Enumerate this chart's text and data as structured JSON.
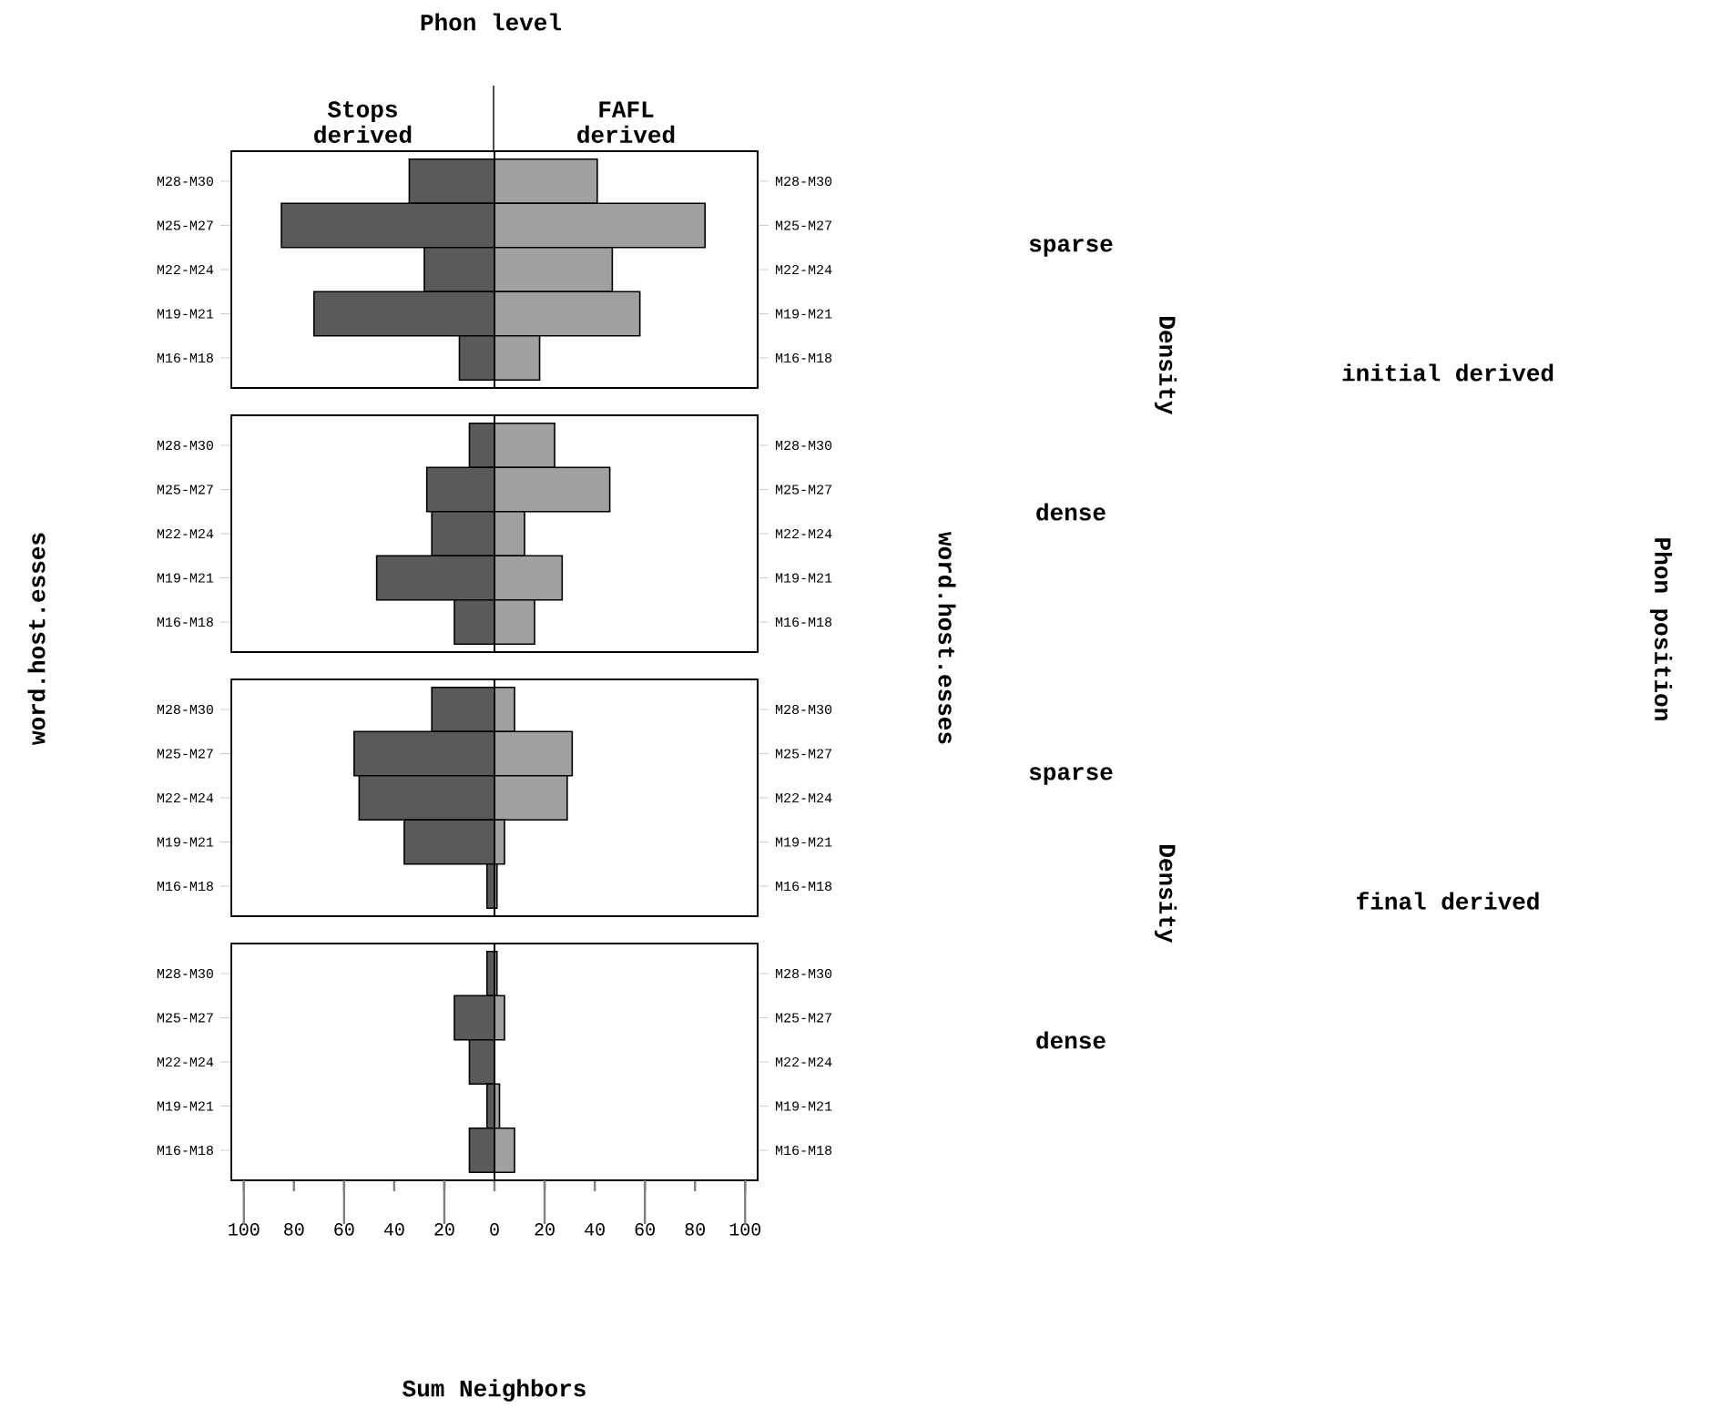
{
  "chart_data": [
    {
      "type": "bar",
      "orientation": "horizontal",
      "stacked": true,
      "title": "Phon level",
      "legend": "top",
      "tick_labels": "y",
      "categories": [
        "M28-M30",
        "M25-M27",
        "M22-M24",
        "M19-M21",
        "M16-M18"
      ],
      "series": [
        {
          "name": "Stops derived",
          "color": "#5a5a5a",
          "values": [
            -34,
            -85,
            -28,
            -72,
            -14
          ]
        },
        {
          "name": "FAFL derived",
          "color": "#a0a0a0",
          "values": [
            41,
            84,
            47,
            58,
            18
          ]
        }
      ],
      "xlim": [
        -105,
        105
      ],
      "ref_lines": [
        {
          "axis": "x",
          "value": 0
        }
      ],
      "annotations": [
        "sparse",
        "Density",
        "initial derived",
        "Phon position"
      ]
    },
    {
      "type": "bar",
      "orientation": "horizontal",
      "stacked": true,
      "tick_labels": "y",
      "ylabel": "word.host.esses",
      "y2label": "word.host.esses",
      "categories": [
        "M28-M30",
        "M25-M27",
        "M22-M24",
        "M19-M21",
        "M16-M18"
      ],
      "series": [
        {
          "color": "#5a5a5a",
          "values": [
            -10,
            -27,
            -25,
            -47,
            -16
          ]
        },
        {
          "color": "#a0a0a0",
          "values": [
            24,
            46,
            12,
            27,
            16
          ]
        }
      ],
      "xlim": [
        -105,
        105
      ],
      "ref_lines": [
        {
          "axis": "x",
          "value": 0
        }
      ],
      "annotations": [
        "dense"
      ]
    },
    {
      "type": "bar",
      "orientation": "horizontal",
      "stacked": true,
      "tick_labels": "y",
      "categories": [
        "M28-M30",
        "M25-M27",
        "M22-M24",
        "M19-M21",
        "M16-M18"
      ],
      "series": [
        {
          "color": "#5a5a5a",
          "values": [
            -25,
            -56,
            -54,
            -36,
            -3
          ]
        },
        {
          "color": "#a0a0a0",
          "values": [
            8,
            31,
            29,
            4,
            1
          ]
        }
      ],
      "xlim": [
        -105,
        105
      ],
      "ref_lines": [
        {
          "axis": "x",
          "value": 0
        }
      ],
      "annotations": [
        "sparse",
        "Density",
        "final derived"
      ]
    },
    {
      "type": "bar",
      "orientation": "horizontal",
      "stacked": true,
      "xlabel": "Sum Neighbors",
      "categories": [
        "M28-M30",
        "M25-M27",
        "M22-M24",
        "M19-M21",
        "M16-M18"
      ],
      "series": [
        {
          "color": "#5a5a5a",
          "values": [
            -3,
            -16,
            -10,
            -3,
            -10
          ]
        },
        {
          "color": "#a0a0a0",
          "values": [
            1,
            4,
            0,
            2,
            8
          ]
        }
      ],
      "xlim": [
        -105,
        105
      ],
      "ref_lines": [
        {
          "axis": "x",
          "value": 0
        }
      ],
      "xticks": [
        {
          "value": -100,
          "label": "100"
        },
        {
          "value": -80,
          "label": "80"
        },
        {
          "value": -60,
          "label": "60"
        },
        {
          "value": -40,
          "label": "40"
        },
        {
          "value": -20,
          "label": "20"
        },
        0,
        20,
        40,
        60,
        80,
        100
      ],
      "annotations": [
        "dense"
      ]
    }
  ]
}
